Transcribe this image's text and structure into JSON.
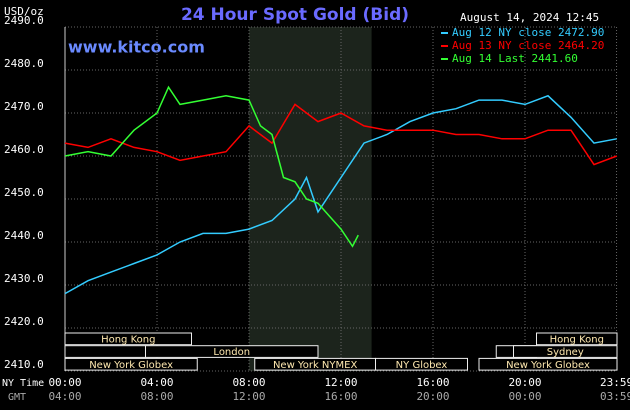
{
  "chart_data": {
    "type": "line",
    "title": "24 Hour Spot Gold (Bid)",
    "unit_label": "USD/oz",
    "date_label": "August 14, 2024 12:45",
    "site_label": "www.kitco.com",
    "x_row_label": "NY Time",
    "x2_row_label": "GMT",
    "xlim": [
      0,
      24
    ],
    "ylim": [
      2410,
      2490
    ],
    "grid": true,
    "legend": "top-right",
    "shade": [
      8,
      13.33
    ],
    "yticks": [
      {
        "value": 2410,
        "label": "2410.0"
      },
      {
        "value": 2420,
        "label": "2420.0"
      },
      {
        "value": 2430,
        "label": "2430.0"
      },
      {
        "value": 2440,
        "label": "2440.0"
      },
      {
        "value": 2450,
        "label": "2450.0"
      },
      {
        "value": 2460,
        "label": "2460.0"
      },
      {
        "value": 2470,
        "label": "2470.0"
      },
      {
        "value": 2480,
        "label": "2480.0"
      },
      {
        "value": 2490,
        "label": "2490.0"
      }
    ],
    "xticks": [
      {
        "value": 0,
        "label": "00:00"
      },
      {
        "value": 4,
        "label": "04:00"
      },
      {
        "value": 8,
        "label": "08:00"
      },
      {
        "value": 12,
        "label": "12:00"
      },
      {
        "value": 16,
        "label": "16:00"
      },
      {
        "value": 20,
        "label": "20:00"
      },
      {
        "value": 23.98,
        "label": "23:59"
      }
    ],
    "x2ticks": [
      {
        "value": 0,
        "label": "04:00"
      },
      {
        "value": 4,
        "label": "08:00"
      },
      {
        "value": 8,
        "label": "12:00"
      },
      {
        "value": 12,
        "label": "16:00"
      },
      {
        "value": 16,
        "label": "20:00"
      },
      {
        "value": 20,
        "label": "00:00"
      },
      {
        "value": 23.98,
        "label": "03:59"
      }
    ],
    "sessions": [
      {
        "label": "Hong Kong",
        "start": 0,
        "end": 5.5,
        "row": 0
      },
      {
        "label": "Hong Kong",
        "start": 20.5,
        "end": 24,
        "row": 0
      },
      {
        "start": 0,
        "end": 3.5,
        "row": 1
      },
      {
        "label": "London",
        "start": 3.5,
        "end": 11,
        "row": 1
      },
      {
        "start": 18.75,
        "end": 20.5,
        "row": 1
      },
      {
        "label": "Sydney",
        "start": 19.5,
        "end": 24,
        "row": 1
      },
      {
        "label": "New York Globex",
        "start": 0,
        "end": 5.75,
        "row": 2
      },
      {
        "label": "New York NYMEX",
        "start": 8.25,
        "end": 13.5,
        "row": 2
      },
      {
        "label": "NY Globex",
        "start": 13.5,
        "end": 17.5,
        "row": 2
      },
      {
        "label": "New York Globex",
        "start": 18,
        "end": 24,
        "row": 2
      }
    ],
    "series": [
      {
        "name": "Aug 12 NY close 2472.90",
        "color": "#33ccff",
        "x": [
          0,
          1,
          2,
          3,
          4,
          5,
          6,
          7,
          8,
          9,
          10,
          10.5,
          11,
          11.5,
          12,
          13,
          14,
          15,
          16,
          17,
          18,
          19,
          20,
          21,
          22,
          23,
          23.99
        ],
        "values": [
          2428,
          2431,
          2433,
          2435,
          2437,
          2440,
          2442,
          2442,
          2443,
          2445,
          2450,
          2455,
          2447,
          2451,
          2455,
          2463,
          2465,
          2468,
          2470,
          2471,
          2473,
          2473,
          2472,
          2474,
          2469,
          2463,
          2464
        ]
      },
      {
        "name": "Aug 13 NY close 2464.20",
        "color": "#ff0000",
        "x": [
          0,
          1,
          2,
          3,
          4,
          5,
          6,
          7,
          8,
          9,
          10,
          11,
          12,
          13,
          14,
          15,
          16,
          17,
          18,
          19,
          20,
          21,
          22,
          23,
          23.99
        ],
        "values": [
          2463,
          2462,
          2464,
          2462,
          2461,
          2459,
          2460,
          2461,
          2467,
          2463,
          2472,
          2468,
          2470,
          2467,
          2466,
          2466,
          2466,
          2465,
          2465,
          2464,
          2464,
          2466,
          2466,
          2458,
          2460
        ]
      },
      {
        "name": "Aug 14 Last 2441.60",
        "color": "#33ff33",
        "x": [
          0,
          1,
          2,
          3,
          4,
          4.5,
          5,
          6,
          7,
          8,
          8.5,
          9,
          9.5,
          10,
          10.5,
          11,
          11.5,
          12,
          12.5,
          12.75
        ],
        "values": [
          2460,
          2461,
          2460,
          2466,
          2470,
          2476,
          2472,
          2473,
          2474,
          2473,
          2467,
          2465,
          2455,
          2454,
          2450,
          2449,
          2446,
          2443,
          2439,
          2441.6
        ]
      }
    ]
  }
}
